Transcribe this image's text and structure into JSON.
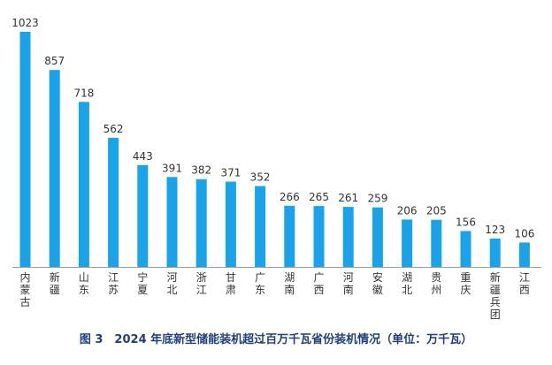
{
  "caption": "图 3　2024 年底新型储能装机超过百万千瓦省份装机情况（单位：万千瓦）",
  "chart_data": {
    "type": "bar",
    "title": "",
    "xlabel": "",
    "ylabel": "",
    "categories": [
      "内蒙古",
      "新疆",
      "山东",
      "江苏",
      "宁夏",
      "河北",
      "浙江",
      "甘肃",
      "广东",
      "湖南",
      "广西",
      "河南",
      "安徽",
      "湖北",
      "贵州",
      "重庆",
      "新疆兵团",
      "江西"
    ],
    "values": [
      1023,
      857,
      718,
      562,
      443,
      391,
      382,
      371,
      352,
      266,
      265,
      261,
      259,
      206,
      205,
      156,
      123,
      106
    ],
    "ylim": [
      0,
      1023
    ],
    "grid": false,
    "bar_color": "#1aa3e8",
    "axis_color": "#9a9a9a",
    "label_color": "#333333"
  }
}
